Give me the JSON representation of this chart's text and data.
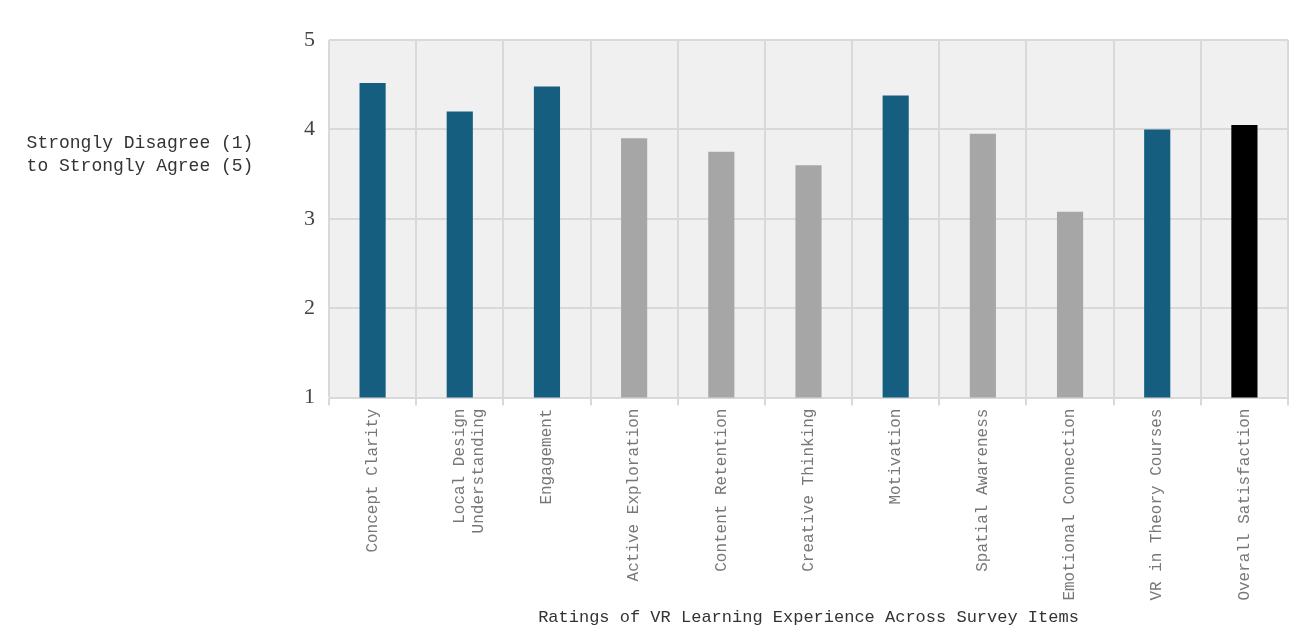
{
  "chart_data": {
    "type": "bar",
    "xlabel": "Ratings of VR Learning Experience Across Survey Items",
    "ylabel": "Strongly Disagree (1) to  Strongly Agree (5)",
    "categories": [
      "Concept Clarity",
      "Local Design Understanding",
      "Engagement",
      "Active Exploration",
      "Content Retention",
      "Creative Thinking",
      "Motivation",
      "Spatial Awareness",
      "Emotional Connection",
      "VR in Theory Courses",
      "Overall Satisfaction"
    ],
    "values": [
      4.52,
      4.2,
      4.48,
      3.9,
      3.75,
      3.6,
      4.38,
      3.95,
      3.08,
      4.0,
      4.05
    ],
    "colors": [
      "#155e80",
      "#155e80",
      "#155e80",
      "#a6a6a6",
      "#a6a6a6",
      "#a6a6a6",
      "#155e80",
      "#a6a6a6",
      "#a6a6a6",
      "#155e80",
      "#000000"
    ],
    "ylim": [
      1,
      5
    ],
    "yticks": [
      1,
      2,
      3,
      4,
      5
    ],
    "grid": true,
    "legend": false
  }
}
